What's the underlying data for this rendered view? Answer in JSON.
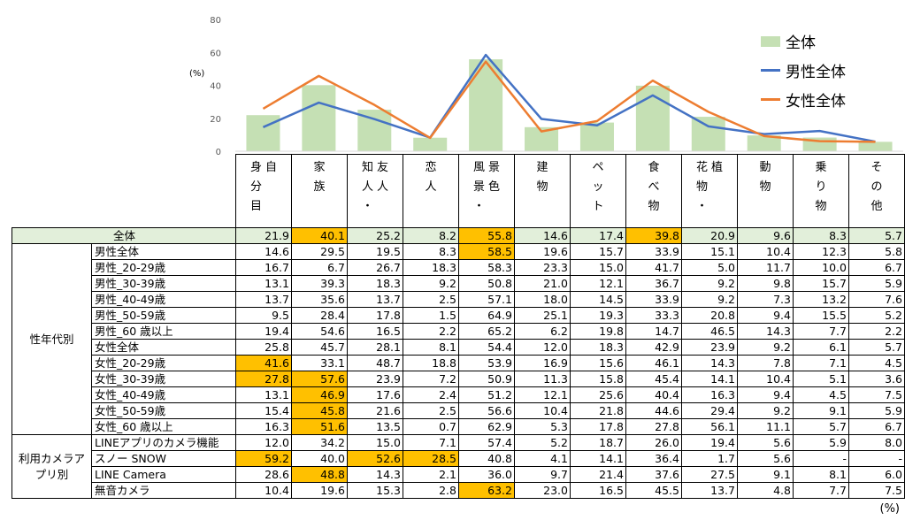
{
  "chart_data": {
    "type": "bar",
    "ylim": [
      0,
      80
    ],
    "yticks": [
      0,
      20,
      40,
      60,
      80
    ],
    "ylabel": "(%)",
    "categories": [
      "自分自身",
      "家族",
      "友人・知人",
      "恋人",
      "風景・景色",
      "建物",
      "ペット",
      "食べ物",
      "植物・花",
      "動物",
      "乗り物",
      "その他"
    ],
    "category_columns": [
      [
        "身",
        "分",
        "目"
      ],
      [
        "自"
      ]
    ],
    "series": [
      {
        "name": "全体",
        "kind": "bar",
        "color": "#c5e0b4",
        "values": [
          21.9,
          40.1,
          25.2,
          8.2,
          55.8,
          14.6,
          17.4,
          39.8,
          20.9,
          9.6,
          8.3,
          5.7
        ]
      },
      {
        "name": "男性全体",
        "kind": "line",
        "color": "#4472c4",
        "values": [
          14.6,
          29.5,
          19.5,
          8.3,
          58.5,
          19.6,
          15.7,
          33.9,
          15.1,
          10.4,
          12.3,
          5.8
        ]
      },
      {
        "name": "女性全体",
        "kind": "line",
        "color": "#ed7d31",
        "values": [
          25.8,
          45.7,
          28.1,
          8.1,
          54.4,
          12.0,
          18.3,
          42.9,
          23.9,
          9.2,
          6.1,
          5.7
        ]
      }
    ],
    "header_glyphs": [
      [
        [
          "身",
          "分",
          "目"
        ],
        [
          "自"
        ]
      ],
      [
        [
          "家",
          "族"
        ]
      ],
      [
        [
          "知",
          "人",
          "・"
        ],
        [
          "友",
          "人"
        ]
      ],
      [
        [
          "恋",
          "人"
        ]
      ],
      [
        [
          "風",
          "景",
          "・"
        ],
        [
          "景",
          "色"
        ]
      ],
      [
        [
          "建",
          "物"
        ]
      ],
      [
        [
          "ペ",
          "ッ",
          "ト"
        ]
      ],
      [
        [
          "食",
          "べ",
          "物"
        ]
      ],
      [
        [
          "花",
          "物",
          "・"
        ],
        [
          "植"
        ]
      ],
      [
        [
          "動",
          "物"
        ]
      ],
      [
        [
          "乗",
          "り",
          "物"
        ]
      ],
      [
        [
          "そ",
          "の",
          "他"
        ]
      ]
    ],
    "table": {
      "total": {
        "label": "全体",
        "values": [
          "21.9",
          "40.1",
          "25.2",
          "8.2",
          "55.8",
          "14.6",
          "17.4",
          "39.8",
          "20.9",
          "9.6",
          "8.3",
          "5.7"
        ],
        "highlight": [
          1,
          4,
          7
        ]
      },
      "groups": [
        {
          "label": "性年代別",
          "rows": [
            {
              "label": "男性全体",
              "values": [
                "14.6",
                "29.5",
                "19.5",
                "8.3",
                "58.5",
                "19.6",
                "15.7",
                "33.9",
                "15.1",
                "10.4",
                "12.3",
                "5.8"
              ],
              "highlight": [
                4
              ]
            },
            {
              "label": "男性_20-29歳",
              "values": [
                "16.7",
                "6.7",
                "26.7",
                "18.3",
                "58.3",
                "23.3",
                "15.0",
                "41.7",
                "5.0",
                "11.7",
                "10.0",
                "6.7"
              ],
              "highlight": []
            },
            {
              "label": "男性_30-39歳",
              "values": [
                "13.1",
                "39.3",
                "18.3",
                "9.2",
                "50.8",
                "21.0",
                "12.1",
                "36.7",
                "9.2",
                "9.8",
                "15.7",
                "5.9"
              ],
              "highlight": []
            },
            {
              "label": "男性_40-49歳",
              "values": [
                "13.7",
                "35.6",
                "13.7",
                "2.5",
                "57.1",
                "18.0",
                "14.5",
                "33.9",
                "9.2",
                "7.3",
                "13.2",
                "7.6"
              ],
              "highlight": []
            },
            {
              "label": "男性_50-59歳",
              "values": [
                "9.5",
                "28.4",
                "17.8",
                "1.5",
                "64.9",
                "25.1",
                "19.3",
                "33.3",
                "20.8",
                "9.4",
                "15.5",
                "5.2"
              ],
              "highlight": []
            },
            {
              "label": "男性_60 歳以上",
              "values": [
                "19.4",
                "54.6",
                "16.5",
                "2.2",
                "65.2",
                "6.2",
                "19.8",
                "14.7",
                "46.5",
                "14.3",
                "7.7",
                "2.2"
              ],
              "highlight": []
            },
            {
              "label": "女性全体",
              "values": [
                "25.8",
                "45.7",
                "28.1",
                "8.1",
                "54.4",
                "12.0",
                "18.3",
                "42.9",
                "23.9",
                "9.2",
                "6.1",
                "5.7"
              ],
              "highlight": []
            },
            {
              "label": "女性_20-29歳",
              "values": [
                "41.6",
                "33.1",
                "48.7",
                "18.8",
                "53.9",
                "16.9",
                "15.6",
                "46.1",
                "14.3",
                "7.8",
                "7.1",
                "4.5"
              ],
              "highlight": [
                0
              ]
            },
            {
              "label": "女性_30-39歳",
              "values": [
                "27.8",
                "57.6",
                "23.9",
                "7.2",
                "50.9",
                "11.3",
                "15.8",
                "45.4",
                "14.1",
                "10.4",
                "5.1",
                "3.6"
              ],
              "highlight": [
                0,
                1
              ]
            },
            {
              "label": "女性_40-49歳",
              "values": [
                "13.1",
                "46.9",
                "17.6",
                "2.4",
                "51.2",
                "12.1",
                "25.6",
                "40.4",
                "16.3",
                "9.4",
                "4.5",
                "7.5"
              ],
              "highlight": [
                1
              ]
            },
            {
              "label": "女性_50-59歳",
              "values": [
                "15.4",
                "45.8",
                "21.6",
                "2.5",
                "56.6",
                "10.4",
                "21.8",
                "44.6",
                "29.4",
                "9.2",
                "9.1",
                "5.9"
              ],
              "highlight": [
                1
              ]
            },
            {
              "label": "女性_60 歳以上",
              "values": [
                "16.3",
                "51.6",
                "13.5",
                "0.7",
                "62.9",
                "5.3",
                "17.8",
                "27.8",
                "56.1",
                "11.1",
                "5.7",
                "6.7"
              ],
              "highlight": [
                1
              ]
            }
          ]
        },
        {
          "label": "利用カメラアプリ別",
          "rows": [
            {
              "label": "LINEアプリのカメラ機能",
              "values": [
                "12.0",
                "34.2",
                "15.0",
                "7.1",
                "57.4",
                "5.2",
                "18.7",
                "26.0",
                "19.4",
                "5.6",
                "5.9",
                "8.0"
              ],
              "highlight": []
            },
            {
              "label": "スノー SNOW",
              "values": [
                "59.2",
                "40.0",
                "52.6",
                "28.5",
                "40.8",
                "4.1",
                "14.1",
                "36.4",
                "1.7",
                "5.6",
                "-",
                "-"
              ],
              "highlight": [
                0,
                2,
                3
              ]
            },
            {
              "label": "LINE Camera",
              "values": [
                "28.6",
                "48.8",
                "14.3",
                "2.1",
                "36.0",
                "9.7",
                "21.4",
                "37.6",
                "27.5",
                "9.1",
                "8.1",
                "6.0"
              ],
              "highlight": [
                1
              ]
            },
            {
              "label": "無音カメラ",
              "values": [
                "10.4",
                "19.6",
                "15.3",
                "2.8",
                "63.2",
                "23.0",
                "16.5",
                "45.5",
                "13.7",
                "4.8",
                "7.7",
                "7.5"
              ],
              "highlight": [
                4
              ]
            }
          ]
        }
      ]
    },
    "unit_note": "(%)"
  }
}
